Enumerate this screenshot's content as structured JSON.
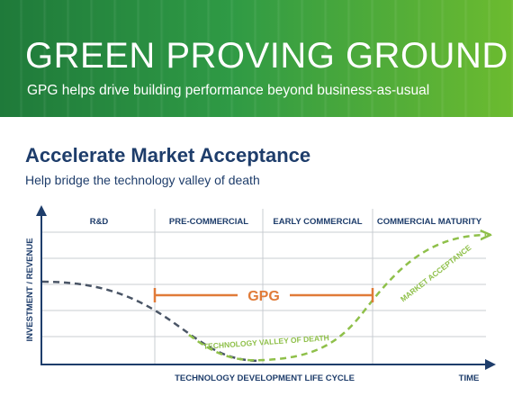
{
  "banner": {
    "title": "GREEN PROVING GROUND",
    "subtitle": "GPG helps drive building performance beyond business-as-usual"
  },
  "section": {
    "title": "Accelerate Market Acceptance",
    "subtitle": "Help bridge the technology valley of death"
  },
  "diagram": {
    "phases": [
      "R&D",
      "PRE-COMMERCIAL",
      "EARLY COMMERCIAL",
      "COMMERCIAL MATURITY"
    ],
    "y_axis_label": "INVESTMENT / REVENUE",
    "x_axis_label": "TECHNOLOGY DEVELOPMENT LIFE CYCLE",
    "x_axis_end_label": "TIME",
    "gpg_label": "GPG",
    "valley_label": "TECHNOLOGY VALLEY OF DEATH",
    "acceptance_label": "MARKET ACCEPTANCE"
  },
  "colors": {
    "navy": "#1e3d6b",
    "orange": "#e07b39",
    "green_dash": "#8fc04a",
    "gray_dash": "#4a5566",
    "grid": "#c8ccd2"
  }
}
